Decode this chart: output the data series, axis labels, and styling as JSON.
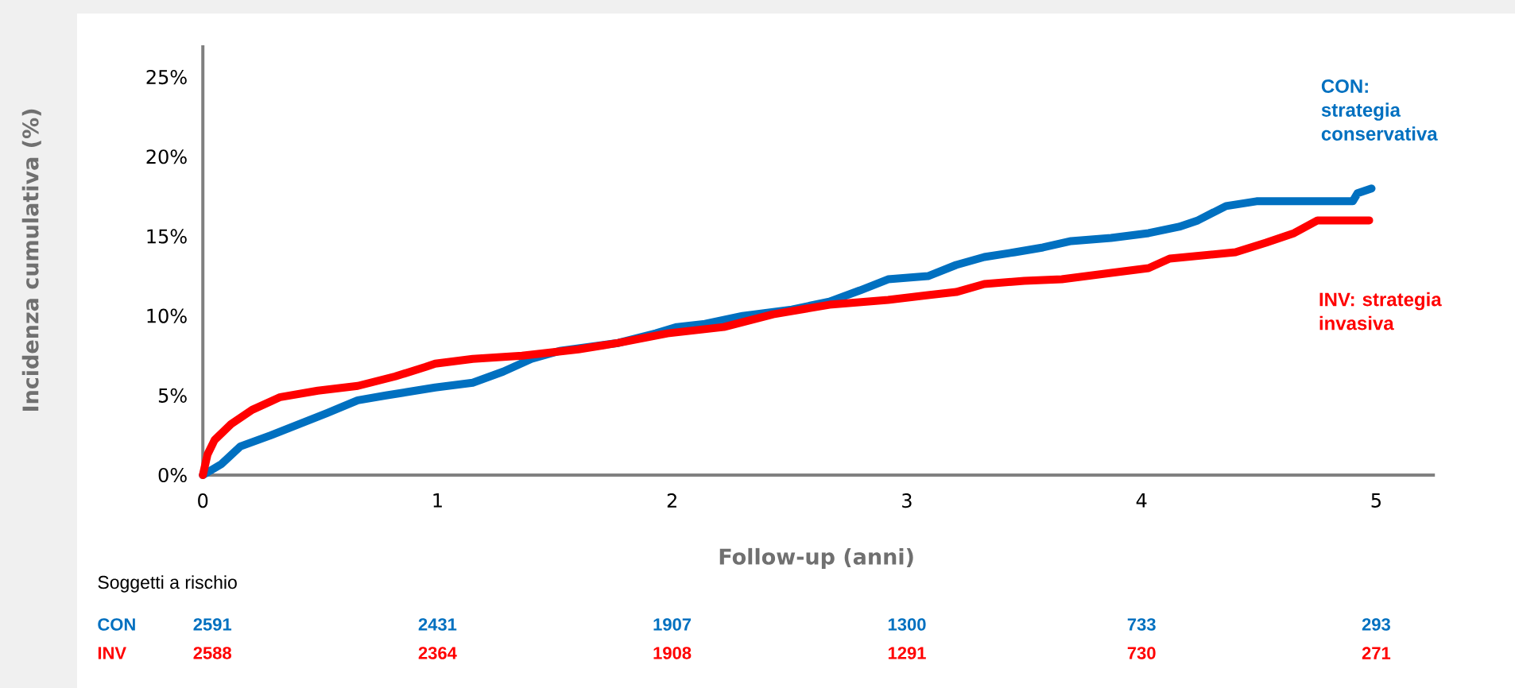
{
  "chart_data": {
    "type": "line",
    "xlabel": "Follow-up (anni)",
    "ylabel": "Incidenza cumulativa (%)",
    "xlim": [
      0,
      5.25
    ],
    "ylim": [
      0,
      27
    ],
    "xticks": [
      0,
      1,
      2,
      3,
      4,
      5
    ],
    "yticks": [
      {
        "value": 0,
        "label": "0%"
      },
      {
        "value": 5,
        "label": "5%"
      },
      {
        "value": 10,
        "label": "10%"
      },
      {
        "value": 15,
        "label": "15%"
      },
      {
        "value": 20,
        "label": "20%"
      },
      {
        "value": 25,
        "label": "25%"
      }
    ],
    "marker": "none",
    "legend": false,
    "series": [
      {
        "name": "CON: strategia conservativa",
        "color": "#0070c0",
        "x": [
          0,
          0.08,
          0.16,
          0.29,
          0.41,
          0.53,
          0.66,
          0.78,
          0.99,
          1.15,
          1.28,
          1.4,
          1.52,
          1.77,
          1.93,
          2.02,
          2.14,
          2.3,
          2.51,
          2.67,
          2.8,
          2.92,
          3.09,
          3.21,
          3.33,
          3.46,
          3.58,
          3.7,
          3.87,
          4.03,
          4.16,
          4.24,
          4.36,
          4.49,
          4.9,
          4.92,
          4.98
        ],
        "values": [
          0,
          0.7,
          1.8,
          2.5,
          3.2,
          3.9,
          4.7,
          5.0,
          5.5,
          5.8,
          6.5,
          7.3,
          7.8,
          8.3,
          8.9,
          9.3,
          9.5,
          10.0,
          10.4,
          10.9,
          11.6,
          12.3,
          12.5,
          13.2,
          13.7,
          14.0,
          14.3,
          14.7,
          14.9,
          15.2,
          15.6,
          16.0,
          16.9,
          17.2,
          17.2,
          17.7,
          18.0
        ]
      },
      {
        "name": "INV: strategia invasiva",
        "color": "#ff0000",
        "x": [
          0,
          0.02,
          0.05,
          0.12,
          0.21,
          0.33,
          0.49,
          0.66,
          0.82,
          0.95,
          0.99,
          1.15,
          1.36,
          1.6,
          1.77,
          1.98,
          2.22,
          2.43,
          2.67,
          2.92,
          3.09,
          3.21,
          3.33,
          3.5,
          3.66,
          3.87,
          4.03,
          4.12,
          4.4,
          4.53,
          4.65,
          4.75,
          4.97
        ],
        "values": [
          0,
          1.3,
          2.2,
          3.2,
          4.1,
          4.9,
          5.3,
          5.6,
          6.2,
          6.8,
          7.0,
          7.3,
          7.5,
          7.9,
          8.3,
          8.9,
          9.3,
          10.1,
          10.7,
          11.0,
          11.3,
          11.5,
          12.0,
          12.2,
          12.3,
          12.7,
          13.0,
          13.6,
          14.0,
          14.6,
          15.2,
          16.0,
          16.0
        ]
      }
    ],
    "annotations": [
      "Soggetti a rischio",
      "CON",
      "2591",
      "2431",
      "1907",
      "1300",
      "733",
      "293",
      "INV",
      "2588",
      "2364",
      "1908",
      "1291",
      "730",
      "271"
    ]
  }
}
